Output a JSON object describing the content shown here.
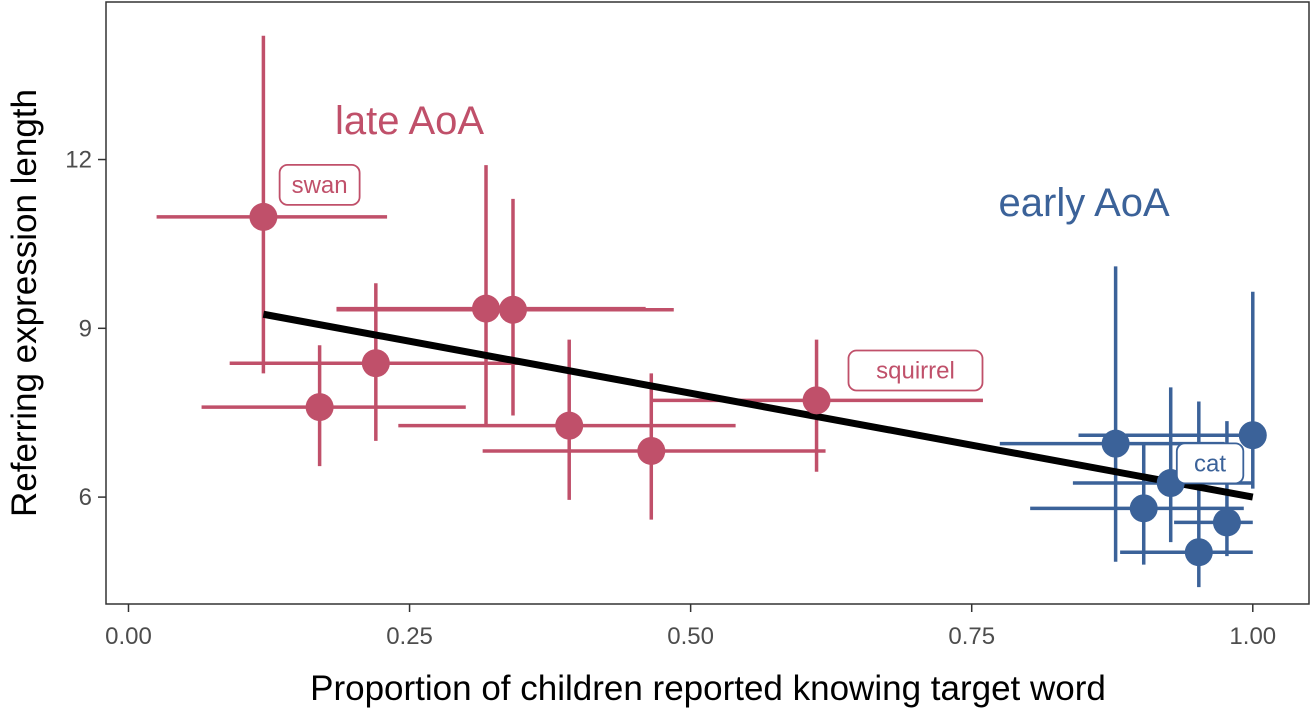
{
  "chart_data": {
    "type": "scatter",
    "xlabel": "Proportion of children reported knowing target word",
    "ylabel": "Referring expression length",
    "xlim": [
      -0.02,
      1.05
    ],
    "ylim": [
      4.1,
      14.8
    ],
    "x_ticks": [
      0.0,
      0.25,
      0.5,
      0.75,
      1.0
    ],
    "x_tick_labels": [
      "0.00",
      "0.25",
      "0.50",
      "0.75",
      "1.00"
    ],
    "y_ticks": [
      6,
      9,
      12
    ],
    "y_tick_labels": [
      "6",
      "9",
      "12"
    ],
    "grid": false,
    "legend": "none",
    "trend_line": {
      "x": [
        0.12,
        1.0
      ],
      "y": [
        9.25,
        6.0
      ],
      "color": "#000000"
    },
    "series": [
      {
        "group": "late",
        "color": "#c0506a",
        "points": [
          {
            "x": 0.12,
            "y": 10.98,
            "xmin": 0.025,
            "xmax": 0.23,
            "ymin": 8.2,
            "ymax": 14.2
          },
          {
            "x": 0.17,
            "y": 7.6,
            "xmin": 0.065,
            "xmax": 0.3,
            "ymin": 6.55,
            "ymax": 8.7
          },
          {
            "x": 0.22,
            "y": 8.38,
            "xmin": 0.09,
            "xmax": 0.355,
            "ymin": 7.0,
            "ymax": 9.8
          },
          {
            "x": 0.318,
            "y": 9.35,
            "xmin": 0.185,
            "xmax": 0.46,
            "ymin": 7.25,
            "ymax": 11.9
          },
          {
            "x": 0.342,
            "y": 9.33,
            "xmin": 0.185,
            "xmax": 0.485,
            "ymin": 7.45,
            "ymax": 11.3
          },
          {
            "x": 0.392,
            "y": 7.27,
            "xmin": 0.24,
            "xmax": 0.54,
            "ymin": 5.95,
            "ymax": 8.8
          },
          {
            "x": 0.465,
            "y": 6.82,
            "xmin": 0.315,
            "xmax": 0.62,
            "ymin": 5.6,
            "ymax": 8.2
          },
          {
            "x": 0.612,
            "y": 7.72,
            "xmin": 0.465,
            "xmax": 0.76,
            "ymin": 6.45,
            "ymax": 8.8
          }
        ]
      },
      {
        "group": "early",
        "color": "#3b6299",
        "points": [
          {
            "x": 0.878,
            "y": 6.95,
            "xmin": 0.775,
            "xmax": 0.975,
            "ymin": 4.85,
            "ymax": 10.1
          },
          {
            "x": 0.903,
            "y": 5.8,
            "xmin": 0.802,
            "xmax": 0.992,
            "ymin": 4.8,
            "ymax": 6.95
          },
          {
            "x": 0.927,
            "y": 6.25,
            "xmin": 0.84,
            "xmax": 1.0,
            "ymin": 5.2,
            "ymax": 7.95
          },
          {
            "x": 0.952,
            "y": 5.02,
            "xmin": 0.882,
            "xmax": 1.0,
            "ymin": 4.4,
            "ymax": 7.7
          },
          {
            "x": 0.977,
            "y": 5.55,
            "xmin": 0.93,
            "xmax": 1.0,
            "ymin": 4.95,
            "ymax": 7.35
          },
          {
            "x": 1.0,
            "y": 7.1,
            "xmin": 0.845,
            "xmax": 1.0,
            "ymin": 6.15,
            "ymax": 9.65
          }
        ]
      }
    ],
    "point_labels": [
      {
        "text": "swan",
        "color": "#c0506a",
        "x": 0.17,
        "y": 11.55
      },
      {
        "text": "squirrel",
        "color": "#c0506a",
        "x": 0.7,
        "y": 8.25
      },
      {
        "text": "cat",
        "color": "#3b6299",
        "x": 0.962,
        "y": 6.6
      }
    ],
    "group_labels": [
      {
        "text": "late AoA",
        "color": "#c0506a",
        "x": 0.25,
        "y": 12.45
      },
      {
        "text": "early AoA",
        "color": "#3b6299",
        "x": 0.85,
        "y": 11.0
      }
    ]
  }
}
